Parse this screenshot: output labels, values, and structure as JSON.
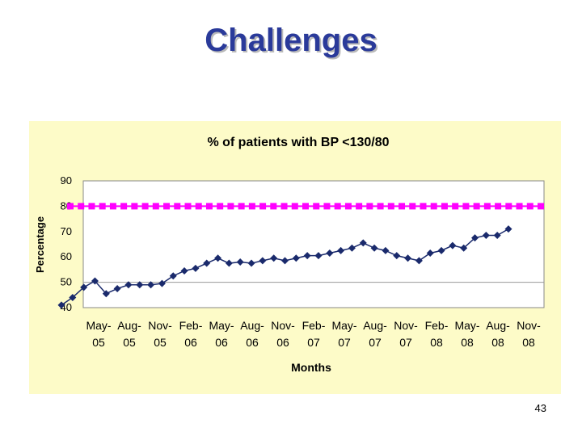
{
  "slide": {
    "title": "Challenges",
    "page_number": "43"
  },
  "colors": {
    "title": "#2a3a9a",
    "plot_background": "#fdfbc8",
    "actual_series": "#1a2a6c",
    "target_series": "#ff00ff"
  },
  "chart_data": {
    "type": "line",
    "title": "% of patients with BP <130/80",
    "xlabel": "Months",
    "ylabel": "Percentage",
    "ylim": [
      40,
      90
    ],
    "yticks": [
      40,
      50,
      60,
      70,
      80,
      90
    ],
    "grid": {
      "horizontal": "gray lines at 50 and 80",
      "vertical": false
    },
    "legend": "none",
    "tick_labels": [
      "May-05",
      "Aug-05",
      "Nov-05",
      "Feb-06",
      "May-06",
      "Aug-06",
      "Nov-06",
      "Feb-07",
      "May-07",
      "Aug-07",
      "Nov-07",
      "Feb-08",
      "May-08",
      "Aug-08",
      "Nov-08"
    ],
    "series": [
      {
        "marker": "diamond",
        "values": [
          41,
          44,
          48,
          50.5,
          45.5,
          47.5,
          49,
          49,
          49,
          49.5,
          52.5,
          54.5,
          55.5,
          57.5,
          59.5,
          57.5,
          58,
          57.5,
          58.5,
          59.5,
          58.5,
          59.5,
          60.5,
          60.5,
          61.5,
          62.5,
          63.5,
          65.5,
          63.5,
          62.5,
          60.5,
          59.5,
          58.5,
          61.5,
          62.5,
          64.5,
          63.5,
          67.5,
          68.5,
          68.5,
          71
        ]
      },
      {
        "marker": "square",
        "values": [
          80,
          80,
          80,
          80,
          80,
          80,
          80,
          80,
          80,
          80,
          80,
          80,
          80,
          80,
          80,
          80,
          80,
          80,
          80,
          80,
          80,
          80,
          80,
          80,
          80,
          80,
          80,
          80,
          80,
          80,
          80,
          80,
          80,
          80,
          80,
          80,
          80,
          80,
          80,
          80,
          80,
          80,
          80,
          80,
          80
        ]
      }
    ]
  }
}
